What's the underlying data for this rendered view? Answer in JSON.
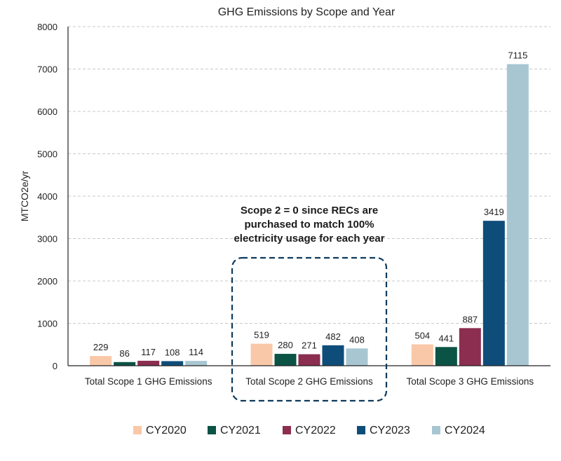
{
  "chart_data": {
    "type": "bar",
    "title": "GHG Emissions by Scope and Year",
    "ylabel": "MTCO2e/yr",
    "xlabel": "",
    "ylim": [
      0,
      8000
    ],
    "yticks": [
      0,
      1000,
      2000,
      3000,
      4000,
      5000,
      6000,
      7000,
      8000
    ],
    "grid": "horizontal dashed",
    "legend_position": "bottom",
    "categories": [
      "Total Scope 1 GHG Emissions",
      "Total Scope 2 GHG Emissions",
      "Total Scope 3 GHG Emissions"
    ],
    "series": [
      {
        "name": "CY2020",
        "color": "#F9C8A8",
        "values": [
          229,
          519,
          504
        ]
      },
      {
        "name": "CY2021",
        "color": "#0B5345",
        "values": [
          86,
          280,
          441
        ]
      },
      {
        "name": "CY2022",
        "color": "#8B2E4F",
        "values": [
          117,
          271,
          887
        ]
      },
      {
        "name": "CY2023",
        "color": "#0E4D7A",
        "values": [
          108,
          482,
          3419
        ]
      },
      {
        "name": "CY2024",
        "color": "#A7C6D2",
        "values": [
          114,
          408,
          7115
        ]
      }
    ],
    "annotation": {
      "lines": [
        "Scope 2 = 0 since RECs are",
        "purchased to match 100%",
        "electricity usage for each year"
      ],
      "highlight_category": "Total Scope 2 GHG Emissions",
      "highlight_color": "#0E3A5C"
    }
  }
}
